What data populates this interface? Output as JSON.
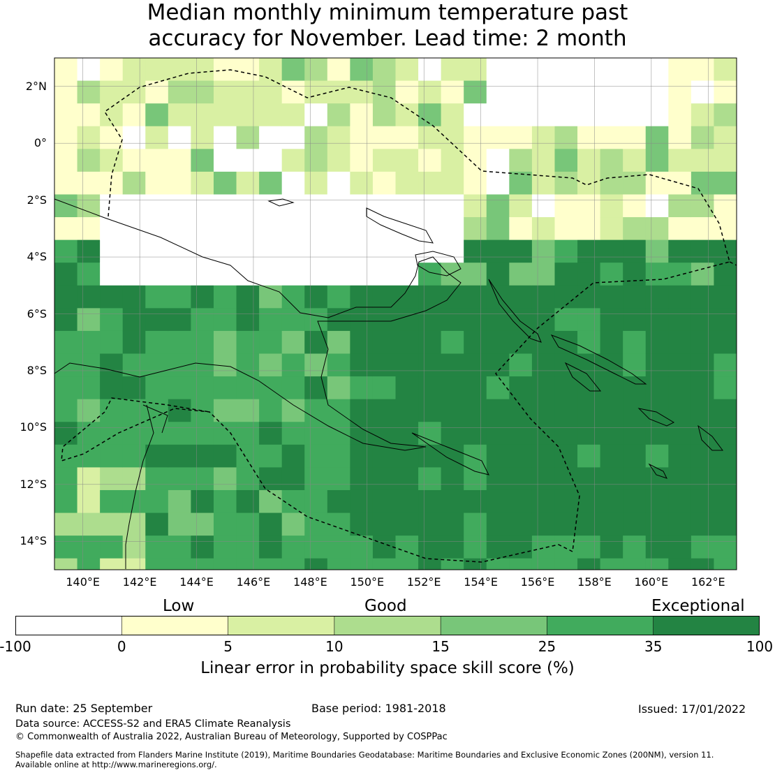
{
  "title": {
    "line1": "Median monthly minimum temperature past",
    "line2": "accuracy for November. Lead time: 2 month"
  },
  "map": {
    "lat_labels": [
      "2°N",
      "0°",
      "2°S",
      "4°S",
      "6°S",
      "8°S",
      "10°S",
      "12°S",
      "14°S"
    ],
    "lon_labels": [
      "140°E",
      "142°E",
      "144°E",
      "146°E",
      "148°E",
      "150°E",
      "152°E",
      "154°E",
      "156°E",
      "158°E",
      "160°E",
      "162°E"
    ],
    "extent": {
      "lon_min": 139.0,
      "lon_max": 163.0,
      "lat_min": -15.0,
      "lat_max": 3.0
    },
    "grid_resolution_deg": 0.8,
    "palette": {
      "none": "#ffffff",
      "low1": "#ffffcc",
      "low2": "#d9f0a3",
      "good1": "#addd8e",
      "good2": "#78c679",
      "exc1": "#41ab5d",
      "exc2": "#238443"
    },
    "skill_regions": [
      {
        "level": 0,
        "desc": "white: north-central PNG waters, north coast belt, Bismarck Sea"
      },
      {
        "level": 1,
        "desc": "yellow scattered north of 2S and on east/west edges"
      },
      {
        "level": 2,
        "desc": "light green north band"
      },
      {
        "level": 5,
        "desc": "green: New Guinea mainland, north Australia"
      },
      {
        "level": 6,
        "desc": "dark green: Coral Sea, Solomon Sea, Solomon Islands"
      }
    ]
  },
  "colorbar": {
    "categories": [
      "Low",
      "Good",
      "Exceptional"
    ],
    "tick_labels": [
      "-100",
      "0",
      "5",
      "10",
      "15",
      "25",
      "35",
      "100"
    ],
    "colors": [
      "#ffffff",
      "#ffffcc",
      "#d9f0a3",
      "#addd8e",
      "#78c679",
      "#41ab5d",
      "#238443"
    ],
    "title": "Linear error in probability space skill score (%)"
  },
  "footer": {
    "run_date": "Run date: 25 September",
    "base_period": "Base period: 1981-2018",
    "issued": "Issued: 17/01/2022",
    "data_source": "Data source: ACCESS-S2 and ERA5 Climate Reanalysis",
    "copyright": "© Commonwealth of Australia 2022, Australian Bureau of Meteorology, Supported by COSPPac",
    "shapefile_line1": "Shapefile data extracted from Flanders Marine Institute (2019), Maritime Boundaries Geodatabase: Maritime Boundaries and Exclusive Economic Zones (200NM), version 11.",
    "shapefile_line2": "Available online at http://www.marineregions.org/."
  }
}
